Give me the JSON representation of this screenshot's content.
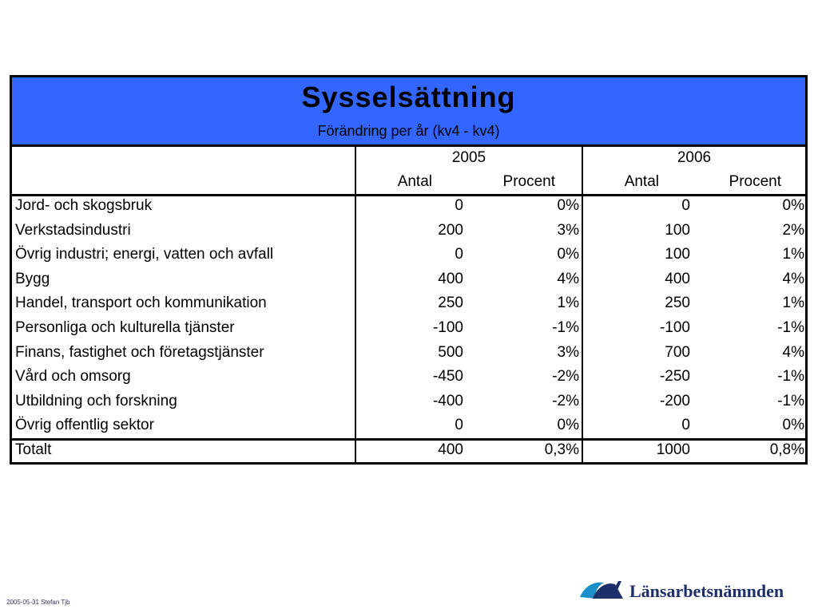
{
  "table": {
    "title": "Sysselsättning",
    "subtitle": "Förändring per år (kv4 - kv4)",
    "years": [
      "2005",
      "2006"
    ],
    "subheaders": [
      "Antal",
      "Procent",
      "Antal",
      "Procent"
    ],
    "rows": [
      {
        "label": "Jord- och skogsbruk",
        "a2005": "0",
        "p2005": "0%",
        "a2006": "0",
        "p2006": "0%"
      },
      {
        "label": "Verkstadsindustri",
        "a2005": "200",
        "p2005": "3%",
        "a2006": "100",
        "p2006": "2%"
      },
      {
        "label": "Övrig industri; energi, vatten och avfall",
        "a2005": "0",
        "p2005": "0%",
        "a2006": "100",
        "p2006": "1%"
      },
      {
        "label": "Bygg",
        "a2005": "400",
        "p2005": "4%",
        "a2006": "400",
        "p2006": "4%"
      },
      {
        "label": "Handel, transport och kommunikation",
        "a2005": "250",
        "p2005": "1%",
        "a2006": "250",
        "p2006": "1%"
      },
      {
        "label": "Personliga och kulturella tjänster",
        "a2005": "-100",
        "p2005": "-1%",
        "a2006": "-100",
        "p2006": "-1%"
      },
      {
        "label": "Finans, fastighet och företagstjänster",
        "a2005": "500",
        "p2005": "3%",
        "a2006": "700",
        "p2006": "4%"
      },
      {
        "label": "Vård och omsorg",
        "a2005": "-450",
        "p2005": "-2%",
        "a2006": "-250",
        "p2006": "-1%"
      },
      {
        "label": "Utbildning och forskning",
        "a2005": "-400",
        "p2005": "-2%",
        "a2006": "-200",
        "p2006": "-1%"
      },
      {
        "label": "Övrig offentlig sektor",
        "a2005": "0",
        "p2005": "0%",
        "a2006": "0",
        "p2006": "0%"
      }
    ],
    "total": {
      "label": "Totalt",
      "a2005": "400",
      "p2005": "0,3%",
      "a2006": "1000",
      "p2006": "0,8%"
    }
  },
  "footer": {
    "date_author": "2005-05-31 Stefan Tjb",
    "logo_text": "Länsarbetsnämnden"
  },
  "colors": {
    "title_band": "#3366ff",
    "logo_blue": "#1c2f6a",
    "logo_light": "#1a8fc9"
  },
  "icons": [
    "lansarbetsnamnden-logo-icon"
  ]
}
